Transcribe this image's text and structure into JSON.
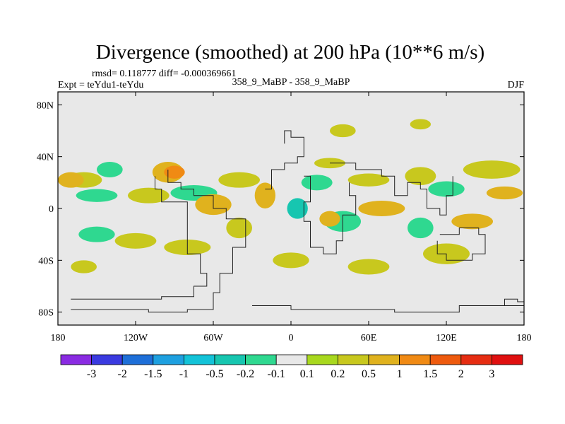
{
  "chart_data": {
    "type": "contour-map",
    "title": "Divergence (smoothed) at 200 hPa (10**6 m/s)",
    "stats_text": "rmsd= 0.118777 diff= -0.000369661",
    "left_label": "Expt = teYdu1-teYdu",
    "center_label": "358_9_MaBP - 358_9_MaBP",
    "right_label": "DJF",
    "xlim": [
      -180,
      180
    ],
    "ylim": [
      -90,
      90
    ],
    "x_ticks": [
      {
        "value": -180,
        "label": "180"
      },
      {
        "value": -120,
        "label": "120W"
      },
      {
        "value": -60,
        "label": "60W"
      },
      {
        "value": 0,
        "label": "0"
      },
      {
        "value": 60,
        "label": "60E"
      },
      {
        "value": 120,
        "label": "120E"
      },
      {
        "value": 180,
        "label": "180"
      }
    ],
    "y_ticks": [
      {
        "value": 80,
        "label": "80N"
      },
      {
        "value": 40,
        "label": "40N"
      },
      {
        "value": 0,
        "label": "0"
      },
      {
        "value": -40,
        "label": "40S"
      },
      {
        "value": -80,
        "label": "80S"
      }
    ],
    "colorbar": {
      "levels": [
        "-3",
        "-2",
        "-1.5",
        "-1",
        "-0.5",
        "-0.2",
        "-0.1",
        "0.1",
        "0.2",
        "0.5",
        "1",
        "1.5",
        "2",
        "3"
      ],
      "colors": [
        "#8a2be2",
        "#3a3ae0",
        "#1e6fd8",
        "#1ea0e0",
        "#13c3d8",
        "#17c6b0",
        "#2fd890",
        "#e8e8e8",
        "#a8d81e",
        "#c8c81e",
        "#e0b21e",
        "#f08a14",
        "#ee5a0e",
        "#e62d12",
        "#e01010"
      ]
    },
    "background_color": "#e8e8e8",
    "fields": [
      {
        "lon": -160,
        "lat": 22,
        "rx": 14,
        "ry": 6,
        "level": 0.2
      },
      {
        "lon": -170,
        "lat": 22,
        "rx": 10,
        "ry": 6,
        "level": 0.5
      },
      {
        "lon": -140,
        "lat": 30,
        "rx": 10,
        "ry": 6,
        "level": -0.2
      },
      {
        "lon": -150,
        "lat": 10,
        "rx": 16,
        "ry": 5,
        "level": -0.2
      },
      {
        "lon": -110,
        "lat": 10,
        "rx": 16,
        "ry": 6,
        "level": 0.2
      },
      {
        "lon": -95,
        "lat": 28,
        "rx": 12,
        "ry": 8,
        "level": 0.5
      },
      {
        "lon": -90,
        "lat": 28,
        "rx": 8,
        "ry": 5,
        "level": 1
      },
      {
        "lon": -75,
        "lat": 12,
        "rx": 18,
        "ry": 6,
        "level": -0.2
      },
      {
        "lon": -60,
        "lat": 3,
        "rx": 14,
        "ry": 8,
        "level": 0.5
      },
      {
        "lon": -40,
        "lat": 22,
        "rx": 16,
        "ry": 6,
        "level": 0.2
      },
      {
        "lon": -20,
        "lat": 10,
        "rx": 8,
        "ry": 10,
        "level": 0.5
      },
      {
        "lon": 5,
        "lat": 0,
        "rx": 8,
        "ry": 8,
        "level": -0.5
      },
      {
        "lon": 20,
        "lat": 20,
        "rx": 12,
        "ry": 6,
        "level": -0.2
      },
      {
        "lon": 30,
        "lat": 35,
        "rx": 12,
        "ry": 4,
        "level": 0.2
      },
      {
        "lon": 60,
        "lat": 22,
        "rx": 16,
        "ry": 5,
        "level": 0.2
      },
      {
        "lon": 70,
        "lat": 0,
        "rx": 18,
        "ry": 6,
        "level": 0.5
      },
      {
        "lon": 40,
        "lat": -10,
        "rx": 14,
        "ry": 8,
        "level": -0.2
      },
      {
        "lon": 30,
        "lat": -8,
        "rx": 8,
        "ry": 6,
        "level": 0.5
      },
      {
        "lon": 100,
        "lat": 25,
        "rx": 12,
        "ry": 7,
        "level": 0.2
      },
      {
        "lon": 120,
        "lat": 15,
        "rx": 14,
        "ry": 6,
        "level": -0.2
      },
      {
        "lon": 155,
        "lat": 30,
        "rx": 22,
        "ry": 7,
        "level": 0.2
      },
      {
        "lon": 165,
        "lat": 12,
        "rx": 14,
        "ry": 5,
        "level": 0.5
      },
      {
        "lon": 140,
        "lat": -10,
        "rx": 16,
        "ry": 6,
        "level": 0.5
      },
      {
        "lon": 100,
        "lat": -15,
        "rx": 10,
        "ry": 8,
        "level": -0.2
      },
      {
        "lon": -150,
        "lat": -20,
        "rx": 14,
        "ry": 6,
        "level": -0.2
      },
      {
        "lon": -120,
        "lat": -25,
        "rx": 16,
        "ry": 6,
        "level": 0.2
      },
      {
        "lon": -80,
        "lat": -30,
        "rx": 18,
        "ry": 6,
        "level": 0.2
      },
      {
        "lon": -40,
        "lat": -15,
        "rx": 10,
        "ry": 8,
        "level": 0.2
      },
      {
        "lon": 0,
        "lat": -40,
        "rx": 14,
        "ry": 6,
        "level": 0.2
      },
      {
        "lon": 60,
        "lat": -45,
        "rx": 16,
        "ry": 6,
        "level": 0.2
      },
      {
        "lon": 120,
        "lat": -35,
        "rx": 18,
        "ry": 8,
        "level": 0.2
      },
      {
        "lon": -160,
        "lat": -45,
        "rx": 10,
        "ry": 5,
        "level": 0.2
      },
      {
        "lon": 40,
        "lat": 60,
        "rx": 10,
        "ry": 5,
        "level": 0.2
      },
      {
        "lon": 100,
        "lat": 65,
        "rx": 8,
        "ry": 4,
        "level": 0.2
      }
    ],
    "coastlines": [
      [
        [
          -170,
          -70
        ],
        [
          -120,
          -70
        ],
        [
          -100,
          -68
        ],
        [
          -75,
          -60
        ],
        [
          -65,
          -50
        ],
        [
          -70,
          -35
        ],
        [
          -80,
          -10
        ],
        [
          -80,
          5
        ],
        [
          -100,
          15
        ],
        [
          -105,
          25
        ]
      ],
      [
        [
          -170,
          -78
        ],
        [
          -110,
          -80
        ],
        [
          -80,
          -78
        ],
        [
          -60,
          -65
        ],
        [
          -55,
          -50
        ],
        [
          -45,
          -30
        ],
        [
          -35,
          -8
        ],
        [
          -50,
          0
        ],
        [
          -60,
          10
        ],
        [
          -75,
          15
        ],
        [
          -85,
          20
        ],
        [
          -95,
          30
        ]
      ],
      [
        [
          -30,
          -75
        ],
        [
          0,
          -78
        ],
        [
          40,
          -78
        ],
        [
          80,
          -80
        ],
        [
          130,
          -75
        ],
        [
          180,
          -75
        ]
      ],
      [
        [
          -20,
          15
        ],
        [
          -15,
          30
        ],
        [
          -5,
          35
        ],
        [
          5,
          40
        ],
        [
          10,
          55
        ],
        [
          0,
          60
        ],
        [
          -5,
          50
        ]
      ],
      [
        [
          10,
          25
        ],
        [
          15,
          5
        ],
        [
          10,
          -10
        ],
        [
          15,
          -30
        ],
        [
          25,
          -35
        ],
        [
          35,
          -25
        ],
        [
          40,
          -5
        ],
        [
          50,
          10
        ],
        [
          45,
          20
        ]
      ],
      [
        [
          30,
          35
        ],
        [
          50,
          30
        ],
        [
          70,
          25
        ],
        [
          80,
          10
        ],
        [
          90,
          20
        ],
        [
          100,
          15
        ],
        [
          105,
          0
        ],
        [
          115,
          -5
        ],
        [
          120,
          10
        ],
        [
          125,
          25
        ]
      ],
      [
        [
          115,
          -20
        ],
        [
          130,
          -15
        ],
        [
          145,
          -20
        ],
        [
          150,
          -35
        ],
        [
          140,
          -40
        ],
        [
          120,
          -35
        ],
        [
          113,
          -25
        ]
      ],
      [
        [
          160,
          -75
        ],
        [
          165,
          -70
        ],
        [
          175,
          -72
        ],
        [
          180,
          -70
        ]
      ]
    ]
  }
}
